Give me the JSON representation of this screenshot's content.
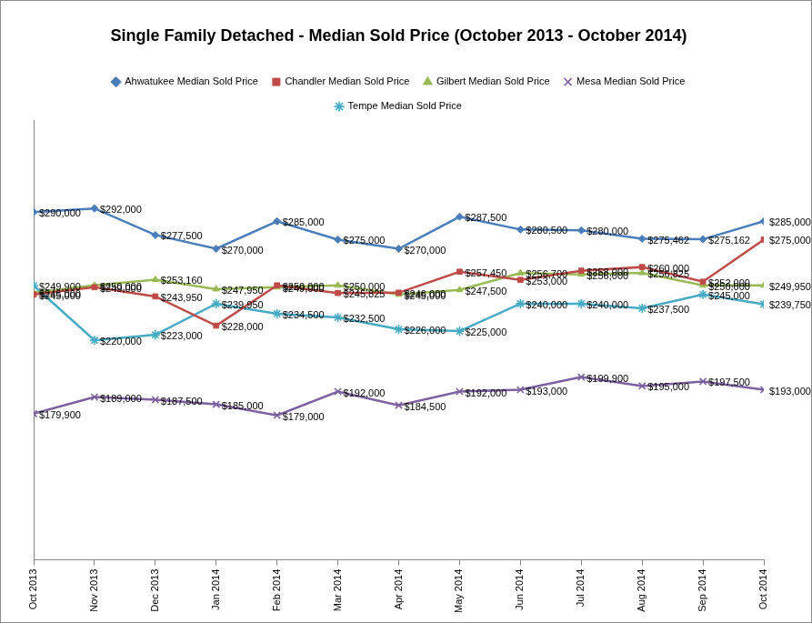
{
  "chart_data": {
    "type": "line",
    "title": "Single Family Detached - Median Sold Price (October 2013 - October 2014)",
    "categories": [
      "Oct 2013",
      "Nov 2013",
      "Dec 2013",
      "Jan 2014",
      "Feb 2014",
      "Mar 2014",
      "Apr 2014",
      "May 2014",
      "Jun 2014",
      "Jul 2014",
      "Aug 2014",
      "Sep 2014",
      "Oct 2014"
    ],
    "series": [
      {
        "name": "Ahwatukee Median Sold Price",
        "color": "#4a7ebb",
        "marker": "diamond",
        "values": [
          290000,
          292000,
          277500,
          270000,
          285000,
          275000,
          270000,
          287500,
          280500,
          280000,
          275462,
          275162,
          285000
        ],
        "value_labels": [
          "$290,000",
          "$292,000",
          "$277,500",
          "$270,000",
          "$285,000",
          "$275,000",
          "$270,000",
          "$287,500",
          "$280,500",
          "$280,000",
          "$275,462",
          "$275,162",
          "$285,000"
        ]
      },
      {
        "name": "Chandler Median Sold Price",
        "color": "#be4b48",
        "marker": "square",
        "values": [
          245000,
          249000,
          243950,
          228000,
          250000,
          245825,
          246000,
          257450,
          253000,
          258000,
          260000,
          252000,
          275000
        ],
        "value_labels": [
          "$245,000",
          "$249,000",
          "$243,950",
          "$228,000",
          "$250,000",
          "$245,825",
          "$246,000",
          "$257,450",
          "$253,000",
          "$258,000",
          "$260,000",
          "$252,000",
          "$275,000"
        ]
      },
      {
        "name": "Gilbert Median Sold Price",
        "color": "#98b954",
        "marker": "triangle",
        "values": [
          246000,
          250000,
          253160,
          247950,
          249000,
          250000,
          245000,
          247500,
          256700,
          256000,
          256825,
          250000,
          249950
        ],
        "value_labels": [
          "$246,000",
          "$250,000",
          "$253,160",
          "$247,950",
          "$249,000",
          "$250,000",
          "$245,000",
          "$247,500",
          "$256,700",
          "$256,000",
          "$256,825",
          "$250,000",
          "$249,950"
        ]
      },
      {
        "name": "Mesa Median Sold Price",
        "color": "#7d60a0",
        "marker": "x",
        "values": [
          179900,
          189000,
          187500,
          185000,
          179000,
          192000,
          184500,
          192000,
          193000,
          199900,
          195000,
          197500,
          193000
        ],
        "value_labels": [
          "$179,900",
          "$189,000",
          "$187,500",
          "$185,000",
          "$179,000",
          "$192,000",
          "$184,500",
          "$192,000",
          "$193,000",
          "$199,900",
          "$195,000",
          "$197,500",
          "$193,000"
        ]
      },
      {
        "name": "Tempe Median Sold Price",
        "color": "#46aac5",
        "marker": "star",
        "values": [
          249900,
          220000,
          223000,
          239950,
          234500,
          232500,
          226000,
          225000,
          240000,
          240000,
          237500,
          245000,
          239750
        ],
        "value_labels": [
          "$249,900",
          "$220,000",
          "$223,000",
          "$239,950",
          "$234,500",
          "$232,500",
          "$226,000",
          "$225,000",
          "$240,000",
          "$240,000",
          "$237,500",
          "$245,000",
          "$239,750"
        ]
      }
    ],
    "ylim": [
      100000,
      340000
    ],
    "grid": false,
    "legend": "top",
    "data_labels": true,
    "tick_labels": "x"
  }
}
